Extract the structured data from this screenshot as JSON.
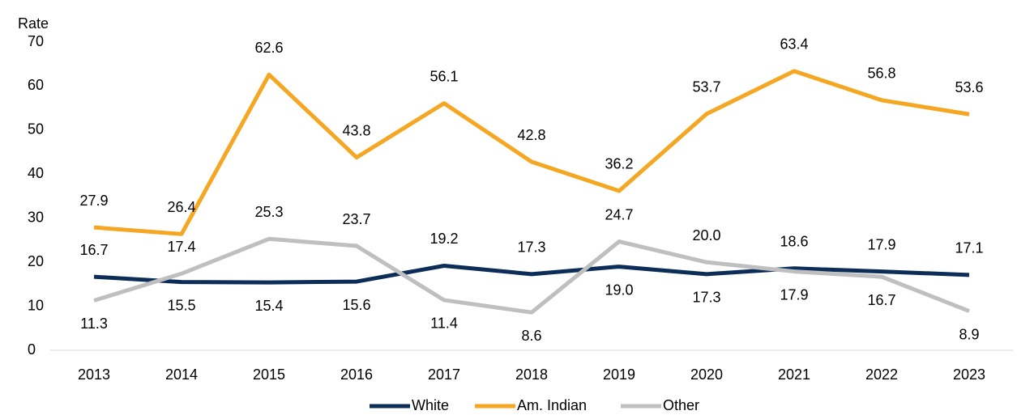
{
  "chart_data": {
    "type": "line",
    "y_label": "Rate",
    "categories": [
      "2013",
      "2014",
      "2015",
      "2016",
      "2017",
      "2018",
      "2019",
      "2020",
      "2021",
      "2022",
      "2023"
    ],
    "series": [
      {
        "name": "White",
        "color": "#0c2d57",
        "values": [
          16.7,
          15.5,
          15.4,
          15.6,
          19.2,
          17.3,
          19.0,
          17.3,
          18.6,
          17.9,
          17.1
        ],
        "value_labels": [
          "16.7",
          "15.5",
          "15.4",
          "15.6",
          "19.2",
          "17.3",
          "19.0",
          "17.3",
          "18.6",
          "17.9",
          "17.1"
        ]
      },
      {
        "name": "Am. Indian",
        "color": "#f5a623",
        "values": [
          27.9,
          26.4,
          62.6,
          43.8,
          56.1,
          42.8,
          36.2,
          53.7,
          63.4,
          56.8,
          53.6
        ],
        "value_labels": [
          "27.9",
          "26.4",
          "62.6",
          "43.8",
          "56.1",
          "42.8",
          "36.2",
          "53.7",
          "63.4",
          "56.8",
          "53.6"
        ]
      },
      {
        "name": "Other",
        "color": "#bfbfbf",
        "values": [
          11.3,
          17.4,
          25.3,
          23.7,
          11.4,
          8.6,
          24.7,
          20.0,
          17.9,
          16.7,
          8.9
        ],
        "value_labels": [
          "11.3",
          "17.4",
          "25.3",
          "23.7",
          "11.4",
          "8.6",
          "24.7",
          "20.0",
          "17.9",
          "16.7",
          "8.9"
        ]
      }
    ],
    "ylim": [
      0,
      70
    ],
    "yticks": [
      0,
      10,
      20,
      30,
      40,
      50,
      60,
      70
    ],
    "grid": false,
    "legend": "bottom"
  }
}
